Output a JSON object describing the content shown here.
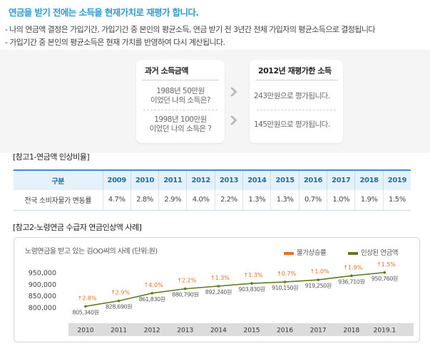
{
  "header": {
    "title": "연금을 받기 전에는 소득을 현재가치로 재평가 합니다.",
    "bullets": [
      "- 나의 연금액 결정은 가입기간, 가입기간 중 본인의 평균소득,  연금 받기 전 3년간 전체 가입자의 평균소득으로 결정됩니다",
      "- 가입기간 중 본인의 평균소득은 현재 가치를 반영하여 다시  계산됩니다."
    ]
  },
  "comparison": {
    "left_title": "과거 소득금액",
    "right_title": "2012년 재평가한 소득",
    "rows": [
      {
        "past_line1": "1988년 50만원",
        "past_line2": "이었던 나의 소득은?",
        "revalued": "243만원으로 평가됩니다."
      },
      {
        "past_line1": "1998년 100만원",
        "past_line2": "이었던 나의 소득은 ?",
        "revalued": "145만원으로 평가됩니다."
      }
    ],
    "arrow_icon": "chevron-right-icon"
  },
  "ref1": {
    "title": "[참고1-연금액 인상비율]",
    "header_label": "구분",
    "years": [
      "2009",
      "2010",
      "2011",
      "2012",
      "2013",
      "2014",
      "2015",
      "2016",
      "2017",
      "2018",
      "2019"
    ],
    "row_label": "전국 소비자물가 변동률",
    "rates": [
      "4.7%",
      "2.8%",
      "2.9%",
      "4.0%",
      "2.2%",
      "1.3%",
      "1.3%",
      "0.7%",
      "1.0%",
      "1.9%",
      "1.5%"
    ]
  },
  "ref2": {
    "title": "[참고2-노령연금 수급자 연금인상액 사례]"
  },
  "chart_data": {
    "type": "line",
    "title": "노령연금을 받고 있는 김OO씨의 사례 (단위:원)",
    "legend": [
      "물가상승률",
      "인상된 연금액"
    ],
    "categories": [
      "2010",
      "2011",
      "2012",
      "2013",
      "2014",
      "2015",
      "2016",
      "2017",
      "2018",
      "2019.1"
    ],
    "values": [
      805340,
      828690,
      861830,
      880790,
      892240,
      903830,
      910150,
      919250,
      936710,
      950760
    ],
    "value_labels": [
      "805,340원",
      "828,690원",
      "861,830원",
      "880,790원",
      "892,240원",
      "903,830원",
      "910,150원",
      "919,250원",
      "936,710원",
      "950,760원"
    ],
    "increase_labels": [
      "2.8%",
      "2.9%",
      "4.0%",
      "2.2%",
      "1.3%",
      "1.3%",
      "0.7%",
      "1.0%",
      "1.9%",
      "1.5%"
    ],
    "y_ticks": [
      "950,000",
      "900,000",
      "850,000",
      "800,000"
    ],
    "y_tick_values": [
      950000,
      900000,
      850000,
      800000
    ],
    "ylim": [
      800000,
      950000
    ],
    "colors": {
      "rate": "#ef6c1b",
      "pension": "#5f7a1f",
      "axis_band": "#dcdcdc"
    }
  }
}
